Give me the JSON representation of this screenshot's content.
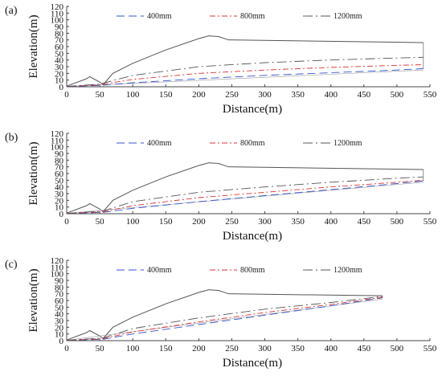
{
  "chart_data": [
    {
      "type": "line",
      "panel_label": "(a)",
      "xlabel": "Distance(m)",
      "ylabel": "Elevation(m)",
      "xlim": [
        0,
        550
      ],
      "ylim": [
        0,
        120
      ],
      "xticks": [
        0,
        50,
        100,
        150,
        200,
        250,
        300,
        350,
        400,
        450,
        500,
        550
      ],
      "yticks": [
        0,
        10,
        20,
        30,
        40,
        50,
        60,
        70,
        80,
        90,
        100,
        110,
        120
      ],
      "legend_position": "top",
      "series": [
        {
          "name": "400mm",
          "color": "#3355cc",
          "x": [
            0,
            50,
            100,
            200,
            300,
            400,
            500,
            540
          ],
          "y": [
            0.5,
            2,
            6,
            12,
            17,
            21,
            25,
            27
          ]
        },
        {
          "name": "800mm",
          "color": "#dd3333",
          "x": [
            0,
            50,
            100,
            200,
            300,
            400,
            500,
            540
          ],
          "y": [
            0.5,
            3,
            11,
            20,
            25,
            29,
            32,
            33
          ]
        },
        {
          "name": "1200mm",
          "color": "#555555",
          "x": [
            0,
            50,
            100,
            200,
            300,
            400,
            500,
            540
          ],
          "y": [
            0.5,
            4,
            17,
            30,
            36,
            40,
            43,
            44
          ]
        }
      ],
      "profile": {
        "x": [
          0,
          30,
          35,
          50,
          55,
          70,
          100,
          150,
          200,
          215,
          230,
          245,
          540
        ],
        "y": [
          1,
          12,
          15,
          7,
          3,
          20,
          35,
          55,
          72,
          76,
          75,
          70,
          66
        ]
      }
    },
    {
      "type": "line",
      "panel_label": "(b)",
      "xlabel": "Distance(m)",
      "ylabel": "Elevation(m)",
      "xlim": [
        0,
        550
      ],
      "ylim": [
        0,
        120
      ],
      "xticks": [
        0,
        50,
        100,
        150,
        200,
        250,
        300,
        350,
        400,
        450,
        500,
        550
      ],
      "yticks": [
        0,
        10,
        20,
        30,
        40,
        50,
        60,
        70,
        80,
        90,
        100,
        110,
        120
      ],
      "legend_position": "top",
      "series": [
        {
          "name": "400mm",
          "color": "#3355cc",
          "x": [
            0,
            55,
            100,
            200,
            300,
            400,
            500,
            540
          ],
          "y": [
            0.5,
            2,
            8,
            18,
            27,
            36,
            45,
            49
          ]
        },
        {
          "name": "800mm",
          "color": "#dd3333",
          "x": [
            0,
            55,
            100,
            200,
            300,
            400,
            500,
            540
          ],
          "y": [
            0.5,
            3,
            12,
            24,
            32,
            40,
            47,
            50
          ]
        },
        {
          "name": "1200mm",
          "color": "#555555",
          "x": [
            0,
            55,
            100,
            200,
            300,
            400,
            500,
            540
          ],
          "y": [
            0.5,
            4,
            18,
            32,
            40,
            47,
            53,
            55
          ]
        }
      ],
      "profile": {
        "x": [
          0,
          30,
          35,
          50,
          55,
          70,
          100,
          150,
          200,
          215,
          230,
          245,
          540
        ],
        "y": [
          1,
          12,
          15,
          7,
          3,
          20,
          35,
          55,
          72,
          76,
          75,
          70,
          66
        ]
      }
    },
    {
      "type": "line",
      "panel_label": "(c)",
      "xlabel": "Distance(m)",
      "ylabel": "Elevation(m)",
      "xlim": [
        0,
        550
      ],
      "ylim": [
        0,
        120
      ],
      "xticks": [
        0,
        50,
        100,
        150,
        200,
        250,
        300,
        350,
        400,
        450,
        500,
        550
      ],
      "yticks": [
        0,
        10,
        20,
        30,
        40,
        50,
        60,
        70,
        80,
        90,
        100,
        110,
        120
      ],
      "legend_position": "top",
      "series": [
        {
          "name": "400mm",
          "color": "#3355cc",
          "x": [
            0,
            55,
            100,
            200,
            300,
            400,
            478
          ],
          "y": [
            0.5,
            2,
            10,
            24,
            38,
            52,
            64
          ]
        },
        {
          "name": "800mm",
          "color": "#dd3333",
          "x": [
            0,
            55,
            100,
            200,
            300,
            400,
            478
          ],
          "y": [
            0.5,
            3,
            13,
            28,
            42,
            54,
            65
          ]
        },
        {
          "name": "1200mm",
          "color": "#555555",
          "x": [
            0,
            55,
            100,
            200,
            300,
            400,
            478
          ],
          "y": [
            0.5,
            4,
            18,
            34,
            47,
            57,
            66
          ]
        }
      ],
      "profile": {
        "x": [
          0,
          30,
          35,
          50,
          55,
          70,
          100,
          150,
          200,
          215,
          230,
          245,
          478
        ],
        "y": [
          1,
          12,
          15,
          7,
          3,
          20,
          35,
          55,
          72,
          76,
          75,
          70,
          67
        ]
      }
    }
  ]
}
